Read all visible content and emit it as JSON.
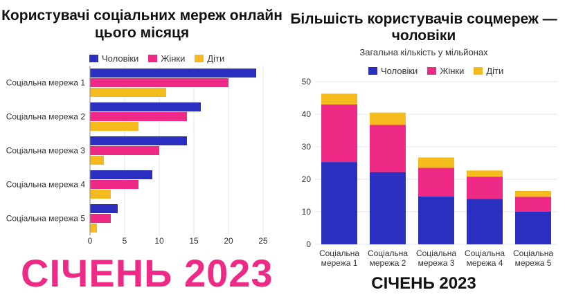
{
  "colors": {
    "men": "#2b2fbf",
    "women": "#ee2a86",
    "kids": "#f5bb1c",
    "axis": "#888888",
    "grid": "#e6e6e6",
    "accent_date": "#ee2a86"
  },
  "left": {
    "title": "Користувачі соціальних мереж онлайн цього місяця",
    "legend": [
      "Чоловіки",
      "Жінки",
      "Діти"
    ]
  },
  "right": {
    "title": "Більшість користувачів соцмереж — чоловіки",
    "subtitle": "Загальна кількість у мільйонах",
    "legend": [
      "Чоловіки",
      "Жінки",
      "Діти"
    ]
  },
  "big_date": "СІЧЕНЬ 2023",
  "small_date": "СІЧЕНЬ 2023",
  "chart_data": [
    {
      "type": "bar",
      "orientation": "horizontal",
      "title": "Користувачі соціальних мереж онлайн цього місяця",
      "categories": [
        "Соціальна мережа 1",
        "Соціальна мережа 2",
        "Соціальна мережа 3",
        "Соціальна мережа 4",
        "Соціальна мережа 5"
      ],
      "series": [
        {
          "name": "Чоловіки",
          "values": [
            24,
            16,
            14,
            9,
            4
          ]
        },
        {
          "name": "Жінки",
          "values": [
            20,
            14,
            10,
            7,
            3
          ]
        },
        {
          "name": "Діти",
          "values": [
            11,
            7,
            2,
            3,
            1
          ]
        }
      ],
      "xlim": [
        0,
        25
      ],
      "xticks": [
        "0",
        "5",
        "10",
        "15",
        "20",
        "25"
      ],
      "legend": "top",
      "grid": true
    },
    {
      "type": "bar",
      "stacked": true,
      "title": "Більшість користувачів соцмереж — чоловіки",
      "subtitle": "Загальна кількість у мільйонах",
      "categories": [
        [
          "Соціальна",
          "мережа 1"
        ],
        [
          "Соціальна",
          "мережа 2"
        ],
        [
          "Соціальна",
          "мережа 3"
        ],
        [
          "Соціальна",
          "мережа 4"
        ],
        [
          "Соціальна",
          "мережа 5"
        ]
      ],
      "series": [
        {
          "name": "Чоловіки",
          "values": [
            25.3,
            22.2,
            14.7,
            14.0,
            10.0
          ]
        },
        {
          "name": "Жінки",
          "values": [
            17.7,
            14.5,
            8.8,
            6.8,
            4.6
          ]
        },
        {
          "name": "Діти",
          "values": [
            3.3,
            3.8,
            3.2,
            1.9,
            1.8
          ]
        }
      ],
      "ylim": [
        0,
        50
      ],
      "yticks": [
        "0",
        "10",
        "20",
        "30",
        "40",
        "50"
      ],
      "legend": "top",
      "grid": true
    }
  ]
}
